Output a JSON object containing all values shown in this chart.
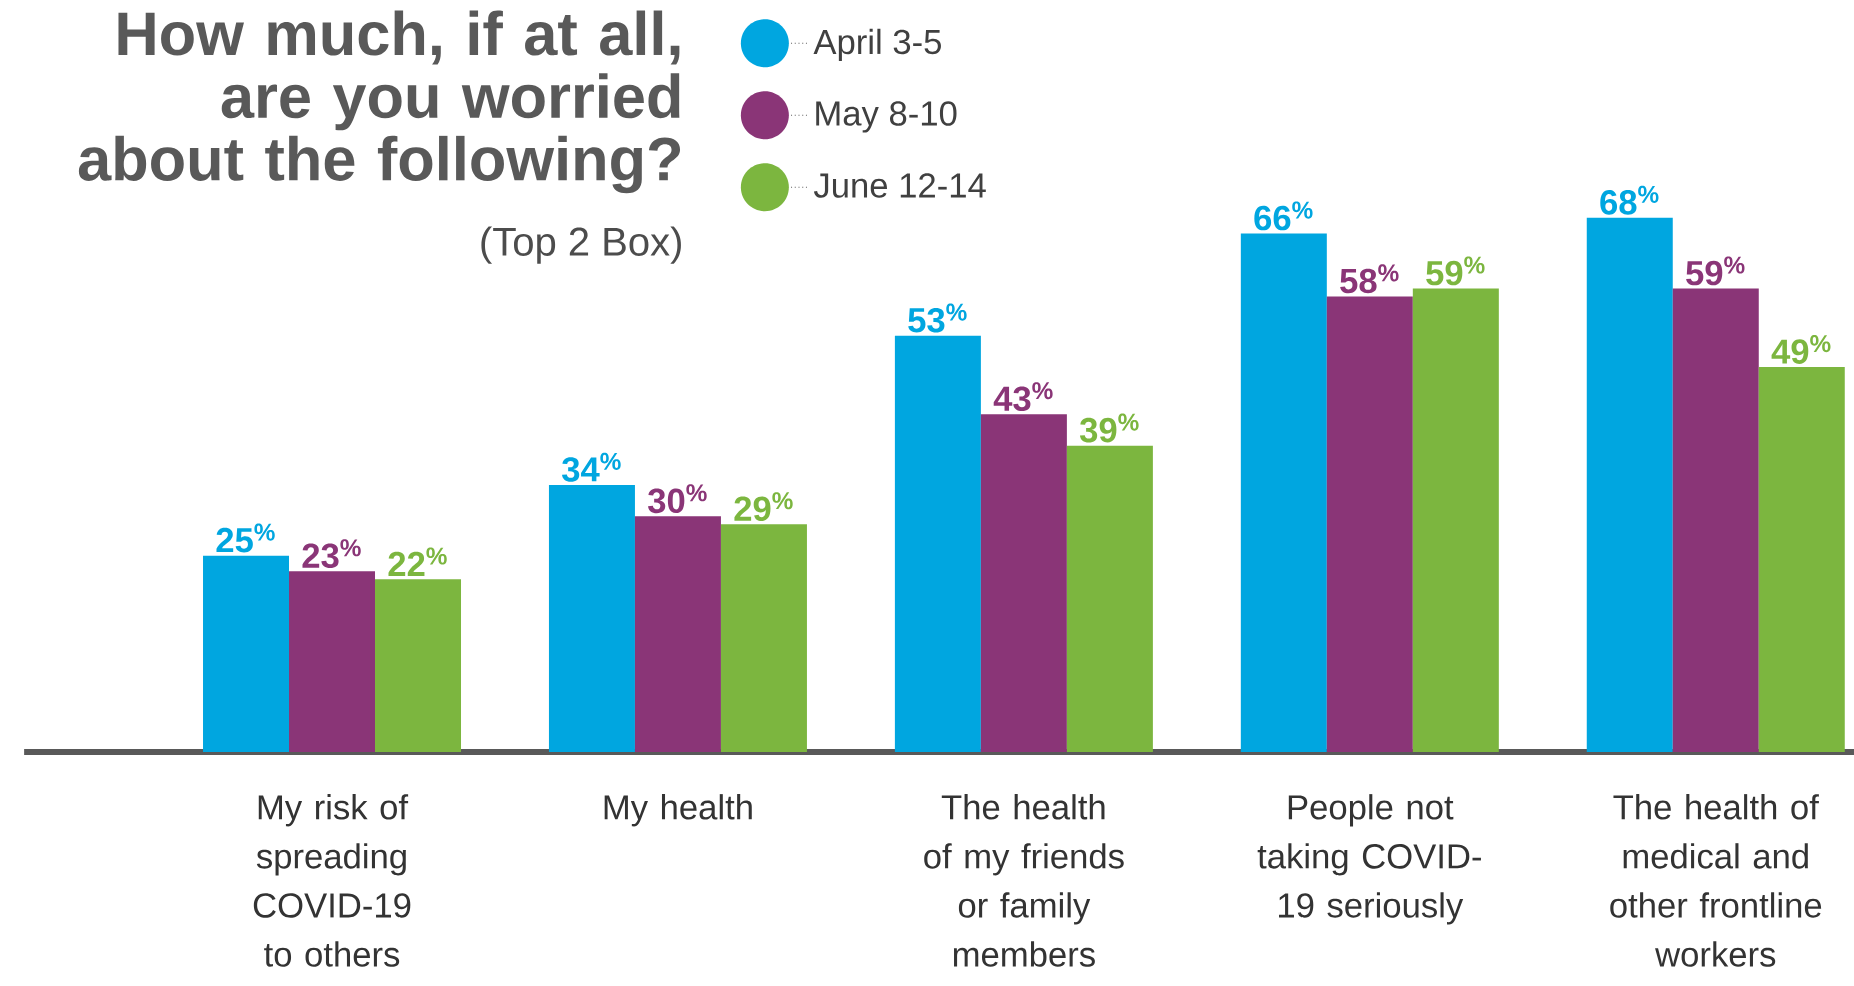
{
  "chart_data": {
    "type": "bar",
    "title": "How much, if at all, are you worried about the following?",
    "subtitle": "(Top 2 Box)",
    "categories": [
      "My risk of spreading COVID-19 to others",
      "My health",
      "The health of my friends or family members",
      "People not taking COVID-19 seriously",
      "The health of medical and other frontline workers"
    ],
    "series": [
      {
        "name": "April 3-5",
        "color": "#00a6e0",
        "values": [
          25,
          34,
          53,
          66,
          68
        ],
        "value_labels": [
          "25$^{%}$",
          "34$^{%}$",
          "53$^{%}$",
          "66$^{%}$",
          "68$^{%}$"
        ]
      },
      {
        "name": "May 8-10",
        "color": "#8a3577",
        "values": [
          23,
          30,
          43,
          58,
          59
        ],
        "value_labels": [
          "23$^{%}$",
          "30$^{%}$",
          "43$^{%}$",
          "58$^{%}$",
          "59$^{%}$"
        ]
      },
      {
        "name": "June 12-14",
        "color": "#7cb63f",
        "values": [
          22,
          29,
          39,
          59,
          49
        ],
        "value_labels": [
          "22$^{%}$",
          "29$^{%}$",
          "39$^{%}$",
          "59$^{%}$",
          "49$^{%}$"
        ]
      }
    ],
    "tick_labels": "x",
    "legend": "top"
  }
}
